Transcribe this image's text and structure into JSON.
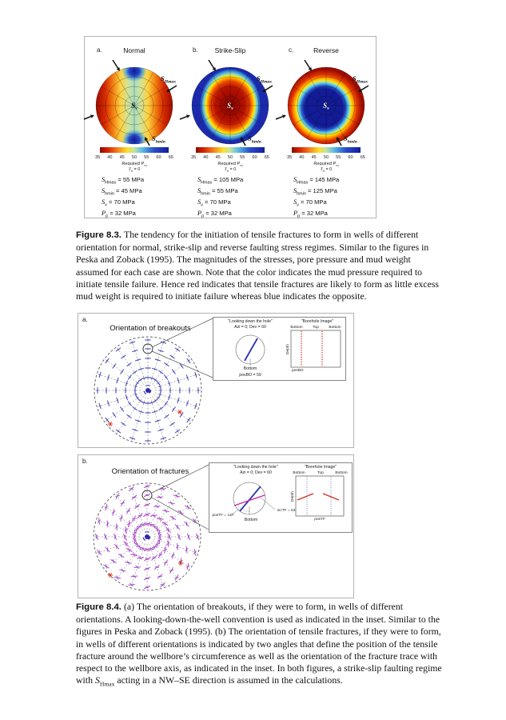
{
  "figure83": {
    "panel_letters": [
      "a.",
      "b.",
      "c."
    ],
    "panel_titles": [
      "Normal",
      "Strike-Slip",
      "Reverse"
    ],
    "center_label": {
      "sym": "S",
      "sub": "v"
    },
    "shmax_label": {
      "sym": "S",
      "sub": "Hmax"
    },
    "shmin_label": {
      "sym": "S",
      "sub": "hmin"
    },
    "colorbar": {
      "ticks": [
        "35",
        "40",
        "45",
        "50",
        "55",
        "60",
        "65"
      ],
      "label": "Required P",
      "label_sub": "m",
      "t_sym": "T",
      "t_sub": "0",
      "t_val": " = 0"
    },
    "stress_tables": [
      [
        {
          "sym": "S",
          "sub": "Hmax",
          "val": "= 55 MPa"
        },
        {
          "sym": "S",
          "sub": "hmin",
          "val": "= 45 MPa"
        },
        {
          "sym": "S",
          "sub": "v",
          "val": "= 70 MPa"
        },
        {
          "sym": "P",
          "sub": "p",
          "val": "= 32 MPa"
        }
      ],
      [
        {
          "sym": "S",
          "sub": "Hmax",
          "val": "= 105 MPa"
        },
        {
          "sym": "S",
          "sub": "hmin",
          "val": "= 55 MPa"
        },
        {
          "sym": "S",
          "sub": "v",
          "val": "= 70 MPa"
        },
        {
          "sym": "P",
          "sub": "p",
          "val": "= 32 MPa"
        }
      ],
      [
        {
          "sym": "S",
          "sub": "Hmax",
          "val": "= 145 MPa"
        },
        {
          "sym": "S",
          "sub": "hmin",
          "val": "= 125 MPa"
        },
        {
          "sym": "S",
          "sub": "v",
          "val": "= 70 MPa"
        },
        {
          "sym": "P",
          "sub": "p",
          "val": "= 32 MPa"
        }
      ]
    ],
    "caption": {
      "label": "Figure 8.3.",
      "text": "The tendency for the initiation of tensile fractures to form in wells of different orientation for normal, strike-slip and reverse faulting stress regimes. Similar to the figures in Peska and Zoback (1995). The magnitudes of the stresses, pore pressure and mud weight assumed for each case are shown. Note that the color indicates the mud pressure required to initiate tensile failure. Hence red indicates that tensile fractures are likely to form as little excess mud weight is required to initiate failure whereas blue indicates the opposite."
    }
  },
  "figure84": {
    "panel_a": {
      "letter": "a.",
      "title": "Orientation of breakouts",
      "inset": {
        "left_title": "\"Looking down the hole\"",
        "left_subtitle": "Azi = 0; Dev = 60",
        "bottom_label": "Bottom",
        "pos_label": "posBO = 59",
        "right_title": "\"Borehole Image\"",
        "top_labels": [
          "Bottom",
          "Top",
          "Bottom"
        ],
        "depth_label": "Depth",
        "x_label": "posBO"
      }
    },
    "panel_b": {
      "letter": "b.",
      "title": "Orientation of fractures",
      "inset": {
        "left_title": "\"Looking down the hole\"",
        "left_subtitle": "Azi = 0; Dev = 60",
        "pos_label": "posTF = 147",
        "bottom_label": "Bottom",
        "inc_label": "incTF = 63",
        "right_title": "\"Borehole Image\"",
        "top_labels": [
          "Bottom",
          "Top",
          "Bottom"
        ],
        "depth_label": "Depth",
        "x_label": "posTF"
      }
    },
    "caption": {
      "label": "Figure 8.4.",
      "text_1": "(a) The orientation of breakouts, if they were to form, in wells of different orientations. A looking-down-the-well convention is used as indicated in the inset. Similar to the figures in Peska and Zoback (1995). (b) The orientation of tensile fractures, if they were to form, in wells of different orientations is indicated by two angles that define the position of the tensile fracture around the wellbore’s circumference as well as the orientation of the fracture trace with respect to the wellbore axis, as indicated in the inset. In both figures, a strike-slip faulting regime with ",
      "s_sym": "S",
      "s_sub": "Hmax",
      "text_2": " acting in a NW–SE direction is assumed in the calculations."
    }
  },
  "colors": {
    "breakout_blue": "#5252b8",
    "fracture_magenta": "#c83cc8",
    "asterisk_red": "#d03020",
    "grid_gray": "#555555",
    "colorbar_red": "#9c0c00",
    "colorbar_blue": "#141d9e"
  }
}
